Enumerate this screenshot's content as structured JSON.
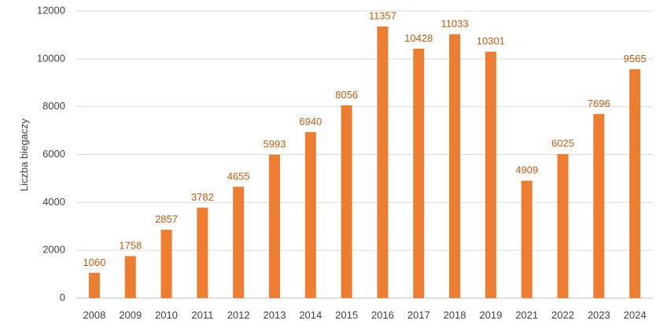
{
  "chart_data": {
    "type": "bar",
    "title": "",
    "xlabel": "",
    "ylabel": "Liczba biegaczy",
    "ylim": [
      0,
      12000
    ],
    "yticks": [
      0,
      2000,
      4000,
      6000,
      8000,
      10000,
      12000
    ],
    "grid": true,
    "legend": "none",
    "bar_color": "#ED7D31",
    "label_color": "#C55A11",
    "categories": [
      "2008",
      "2009",
      "2010",
      "2011",
      "2012",
      "2013",
      "2014",
      "2015",
      "2016",
      "2017",
      "2018",
      "2019",
      "2021",
      "2022",
      "2023",
      "2024"
    ],
    "values": [
      1060,
      1758,
      2857,
      3782,
      4655,
      5993,
      6940,
      8056,
      11357,
      10428,
      11033,
      10301,
      4909,
      6025,
      7696,
      9565
    ]
  }
}
